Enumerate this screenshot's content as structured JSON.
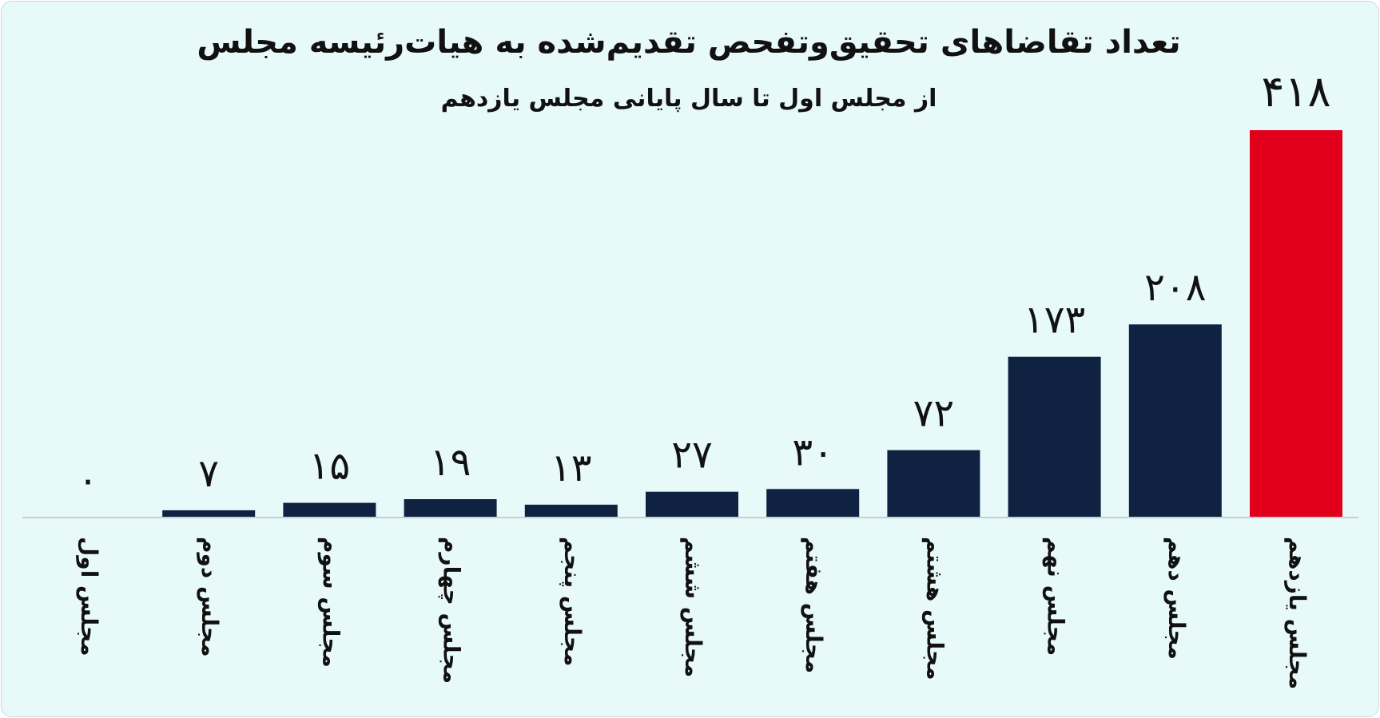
{
  "chart_data": {
    "type": "bar",
    "title": "تعداد تقاضاهای تحقیق‌وتفحص تقدیم‌شده به هیات‌رئیسه مجلس",
    "subtitle": "از مجلس اول تا سال پایانی مجلس یازدهم",
    "categories": [
      "مجلس اول",
      "مجلس دوم",
      "مجلس سوم",
      "مجلس چهارم",
      "مجلس پنجم",
      "مجلس ششم",
      "مجلس هفتم",
      "مجلس هشتم",
      "مجلس نهم",
      "مجلس دهم",
      "مجلس یازدهم"
    ],
    "values": [
      0,
      7,
      15,
      19,
      13,
      27,
      30,
      72,
      173,
      208,
      418
    ],
    "value_labels": [
      "۰",
      "۷",
      "۱۵",
      "۱۹",
      "۱۳",
      "۲۷",
      "۳۰",
      "۷۲",
      "۱۷۳",
      "۲۰۸",
      "۴۱۸"
    ],
    "ylim": [
      0,
      418
    ],
    "grid": false,
    "legend": "none",
    "xlabel": "",
    "ylabel": "",
    "colors": {
      "bar": "#0f2242",
      "highlight": "#e0001b",
      "text": "#111111",
      "baseline": "#c6cfd2",
      "background": "#e8f9fa"
    },
    "highlight_index": 10
  }
}
